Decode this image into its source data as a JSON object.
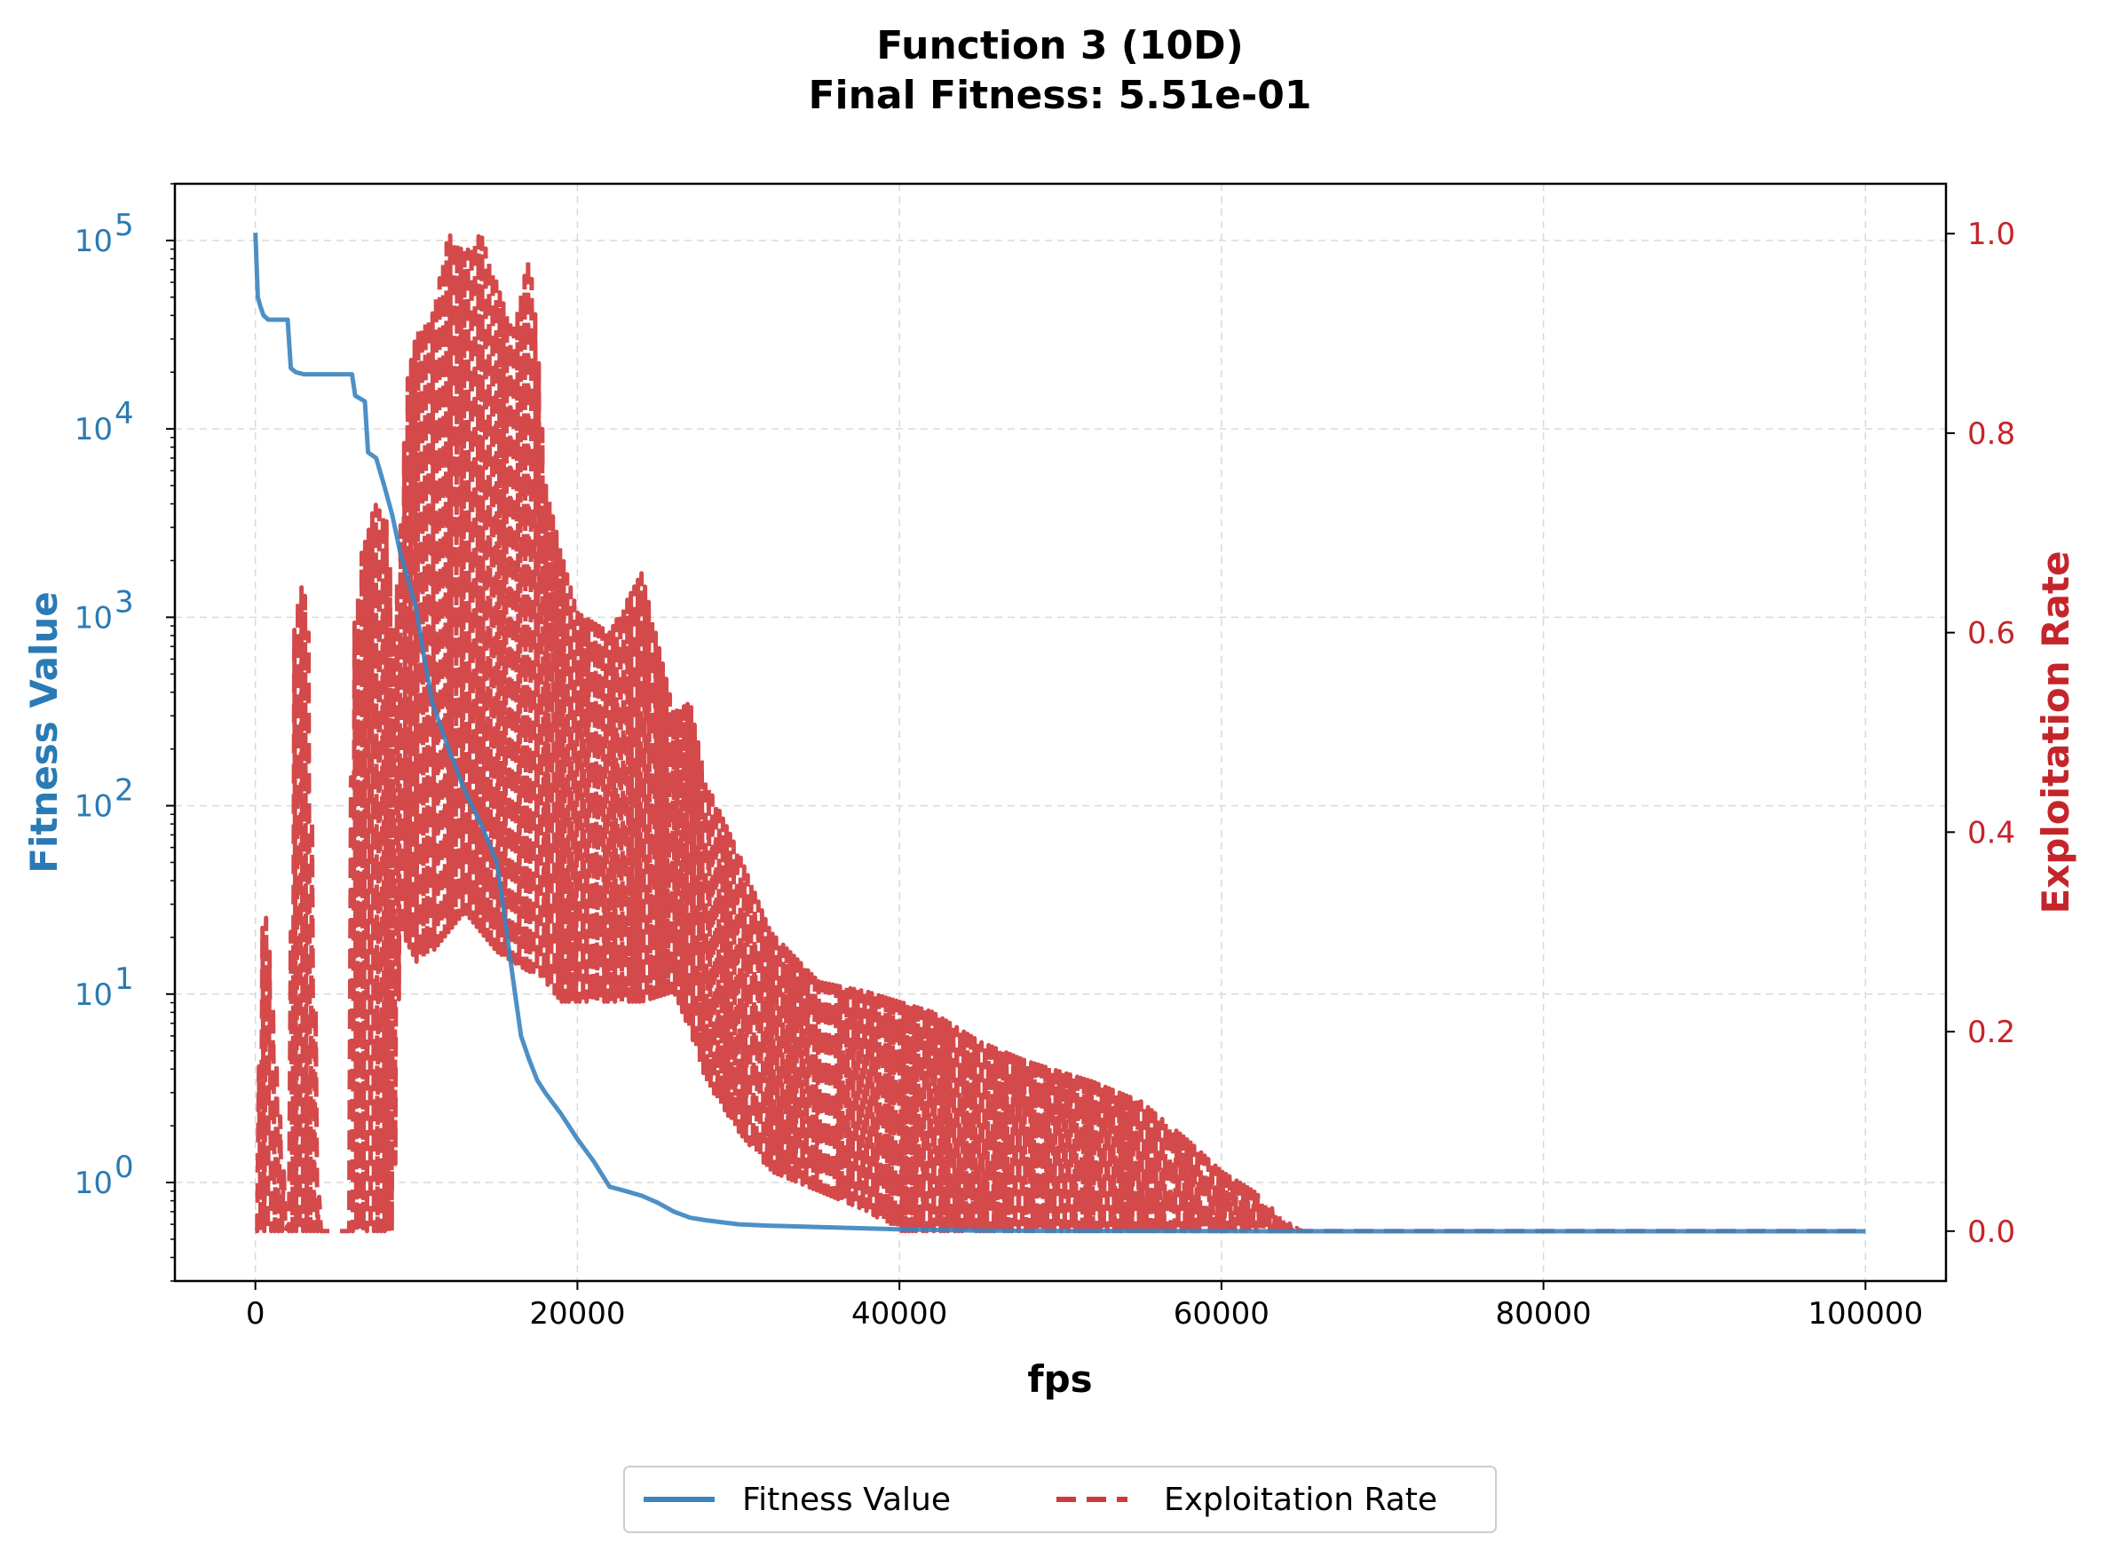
{
  "chart_data": {
    "type": "line",
    "title": "Function 3 (10D)",
    "subtitle": "Final Fitness: 5.51e-01",
    "xlabel": "fps",
    "ylabel_left": "Fitness Value",
    "ylabel_right": "Exploitation Rate",
    "xlim": [
      -5000,
      105000
    ],
    "x_ticks": [
      0,
      20000,
      40000,
      60000,
      80000,
      100000
    ],
    "x_tick_labels": [
      "0",
      "20000",
      "40000",
      "60000",
      "80000",
      "100000"
    ],
    "y_left_scale": "log",
    "y_left_lim": [
      0.3,
      200000
    ],
    "y_left_ticks": [
      1,
      10,
      100,
      1000,
      10000,
      100000
    ],
    "y_left_tick_bases": [
      "10",
      "10",
      "10",
      "10",
      "10",
      "10"
    ],
    "y_left_tick_exponents": [
      "0",
      "1",
      "2",
      "3",
      "4",
      "5"
    ],
    "y_right_lim": [
      -0.05,
      1.05
    ],
    "y_right_ticks": [
      0.0,
      0.2,
      0.4,
      0.6,
      0.8,
      1.0
    ],
    "y_right_tick_labels": [
      "0.0",
      "0.2",
      "0.4",
      "0.6",
      "0.8",
      "1.0"
    ],
    "grid": true,
    "legend_position": "bottom-center",
    "colors": {
      "fitness": "#3a84c0",
      "exploitation": "#d0393b",
      "left_axis": "#2a7ab5",
      "right_axis": "#c4252a"
    },
    "series": [
      {
        "name": "Fitness Value",
        "axis": "left",
        "style": "solid",
        "x": [
          0,
          150,
          300,
          500,
          800,
          1000,
          2000,
          2200,
          2500,
          3000,
          4000,
          5000,
          6000,
          6200,
          6800,
          7000,
          7500,
          8000,
          8500,
          9000,
          9300,
          10000,
          10500,
          11000,
          12000,
          13000,
          14000,
          15000,
          15500,
          16000,
          16500,
          17000,
          17500,
          18000,
          19000,
          20000,
          21000,
          22000,
          23000,
          24000,
          25000,
          26000,
          27000,
          28000,
          30000,
          32000,
          35000,
          38000,
          40000,
          42000,
          45000,
          50000,
          60000,
          70000,
          80000,
          90000,
          100000
        ],
        "values": [
          110000,
          50000,
          45000,
          40000,
          38000,
          38000,
          38000,
          21000,
          20000,
          19500,
          19500,
          19500,
          19500,
          15000,
          14000,
          7500,
          7000,
          5000,
          3500,
          2200,
          1800,
          1100,
          600,
          350,
          200,
          120,
          80,
          50,
          25,
          12,
          6,
          4.5,
          3.5,
          3.0,
          2.3,
          1.7,
          1.3,
          0.95,
          0.9,
          0.85,
          0.78,
          0.7,
          0.65,
          0.63,
          0.6,
          0.59,
          0.58,
          0.57,
          0.565,
          0.56,
          0.555,
          0.553,
          0.552,
          0.551,
          0.551,
          0.551,
          0.551
        ]
      },
      {
        "name": "Exploitation Rate",
        "axis": "right",
        "style": "dashed",
        "envelope_x": [
          0,
          400,
          600,
          800,
          1200,
          2000,
          2400,
          2700,
          3000,
          3300,
          4000,
          5000,
          5800,
          6000,
          6200,
          6600,
          7000,
          7400,
          7800,
          8200,
          8600,
          9000,
          9400,
          10000,
          11000,
          12000,
          13000,
          14000,
          15000,
          16000,
          17000,
          17500,
          18000,
          19000,
          20000,
          22000,
          24000,
          26000,
          27000,
          28000,
          30000,
          32000,
          35000,
          38000,
          40000,
          42000,
          45000,
          48000,
          50000,
          52000,
          55000,
          58000,
          60000,
          62000,
          64000,
          65000,
          70000,
          80000,
          90000,
          100000
        ],
        "envelope_hi": [
          0.0,
          0.3,
          0.32,
          0.3,
          0.2,
          0.0,
          0.6,
          0.64,
          0.65,
          0.6,
          0.0,
          0.0,
          0.0,
          0.65,
          0.6,
          0.68,
          0.7,
          0.73,
          0.72,
          0.71,
          0.6,
          0.7,
          0.85,
          0.9,
          0.92,
          1.0,
          0.98,
          1.0,
          0.95,
          0.9,
          0.98,
          0.9,
          0.75,
          0.68,
          0.62,
          0.6,
          0.66,
          0.52,
          0.53,
          0.45,
          0.38,
          0.3,
          0.25,
          0.24,
          0.23,
          0.22,
          0.19,
          0.17,
          0.16,
          0.15,
          0.13,
          0.09,
          0.06,
          0.04,
          0.01,
          0.0,
          0.0,
          0.0,
          0.0,
          0.0
        ],
        "envelope_lo": [
          0.0,
          0.0,
          0.0,
          0.0,
          0.0,
          0.0,
          0.0,
          0.0,
          0.0,
          0.0,
          0.0,
          0.0,
          0.0,
          0.0,
          0.0,
          0.0,
          0.0,
          0.0,
          0.0,
          0.0,
          0.0,
          0.3,
          0.29,
          0.27,
          0.28,
          0.3,
          0.32,
          0.3,
          0.28,
          0.27,
          0.26,
          0.26,
          0.25,
          0.23,
          0.23,
          0.23,
          0.23,
          0.24,
          0.2,
          0.15,
          0.1,
          0.06,
          0.04,
          0.02,
          0.0,
          0.0,
          0.0,
          0.0,
          0.0,
          0.0,
          0.0,
          0.0,
          0.0,
          0.0,
          0.0,
          0.0,
          0.0,
          0.0,
          0.0,
          0.0
        ]
      }
    ]
  }
}
